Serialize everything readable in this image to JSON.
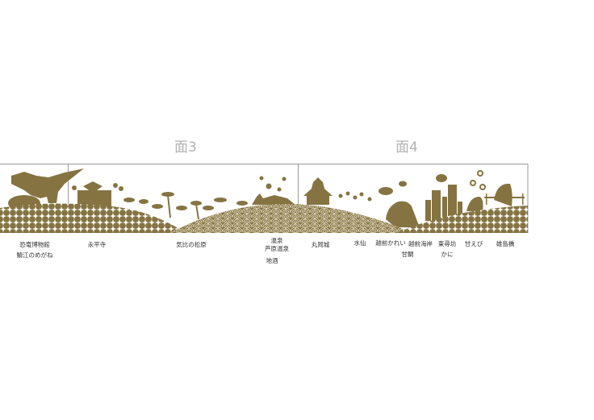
{
  "faces": [
    {
      "title": "面3"
    },
    {
      "title": "面4"
    }
  ],
  "colors": {
    "motif": "#857442",
    "frame": "#9a9a9a",
    "title": "#b3b3b3"
  },
  "labels": {
    "dinosaur_museum": "恐竜博物館",
    "sabae_glasses": "鯖江のめがね",
    "eiheiji": "永平寺",
    "kehi_pines": "気比の松原",
    "onsen": "温泉",
    "awara_onsen": "芦原温泉",
    "local_sake": "地酒",
    "maruoka_castle": "丸岡城",
    "daffodil": "水仙",
    "echizen_flounder": "越前かれい",
    "echizen_coast": "越前海岸",
    "amadai": "甘鯛",
    "tojinbo": "東尋坊",
    "crab": "かに",
    "sweet_shrimp": "甘えび",
    "oshima_bridge": "雄島橋"
  }
}
